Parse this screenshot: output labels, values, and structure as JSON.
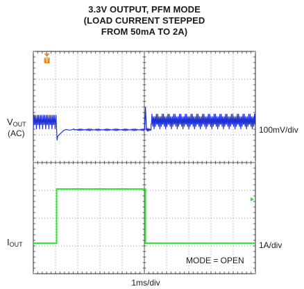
{
  "chart_data": {
    "type": "line",
    "title_lines": [
      "3.3V OUTPUT, PFM MODE",
      "(LOAD CURRENT STEPPED",
      "FROM 50mA TO 2A)"
    ],
    "xlabel": "1ms/div",
    "x_divisions": 10,
    "y_divisions": 8,
    "grid": true,
    "series": [
      {
        "name": "V_OUT (AC)",
        "label_main": "V",
        "label_sub": "OUT",
        "label_coupling": "(AC)",
        "scale_label": "100mV/div",
        "color": "#1f2fd6",
        "channel_center_div": 2.1,
        "behavior": "PFM ripple before step, undershoot at step-up, flat during 2A load, overshoot at step-down, PFM ripple after",
        "pfm_ripple_pp_mV": 60,
        "undershoot_mV": -60,
        "overshoot_mV": 60
      },
      {
        "name": "I_OUT",
        "label_main": "I",
        "label_sub": "OUT",
        "scale_label": "1A/div",
        "color": "#2ee82e",
        "x": [
          0,
          1.05,
          1.05,
          5.05,
          5.05,
          10
        ],
        "y": [
          0.05,
          0.05,
          2.0,
          2.0,
          0.05,
          0.05
        ]
      }
    ],
    "annotation": "MODE = OPEN",
    "trigger_marker": "T"
  }
}
